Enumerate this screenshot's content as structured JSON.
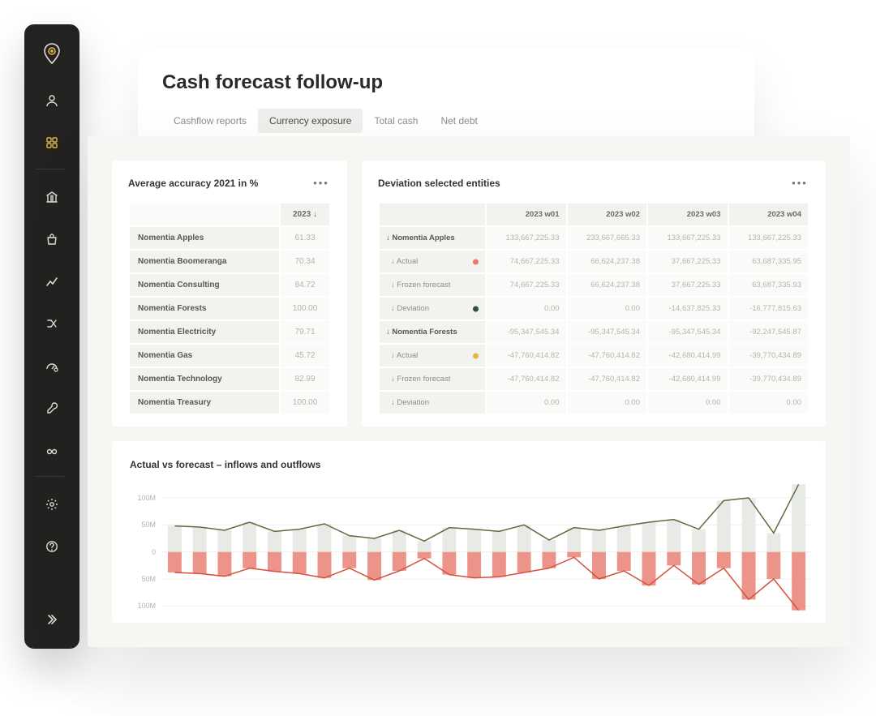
{
  "page": {
    "title": "Cash forecast follow-up",
    "tabs": [
      "Cashflow reports",
      "Currency exposure",
      "Total cash",
      "Net debt"
    ],
    "active_tab": 1
  },
  "sidebar": {
    "icons": [
      "logo",
      "user",
      "grid",
      "divider",
      "bank",
      "bag",
      "chart",
      "merge",
      "gauge",
      "wrench",
      "glasses",
      "divider",
      "gear",
      "help"
    ],
    "active_index": 2
  },
  "accuracy": {
    "title": "Average accuracy 2021 in %",
    "col_header": "2023 ↓",
    "rows": [
      {
        "name": "Nomentia Apples",
        "value": "61.33"
      },
      {
        "name": "Nomentia Boomeranga",
        "value": "70.34"
      },
      {
        "name": "Nomentia Consulting",
        "value": "84.72"
      },
      {
        "name": "Nomentia Forests",
        "value": "100.00"
      },
      {
        "name": "Nomentia Electricity",
        "value": "79.71"
      },
      {
        "name": "Nomentia Gas",
        "value": "45.72"
      },
      {
        "name": "Nomentia Technology",
        "value": "82.99"
      },
      {
        "name": "Nomentia Treasury",
        "value": "100.00"
      }
    ]
  },
  "deviation": {
    "title": "Deviation selected entities",
    "columns": [
      "",
      "2023 w01",
      "2023 w02",
      "2023 w03",
      "2023 w04"
    ],
    "groups": [
      {
        "label": "↓ Nomentia Apples",
        "totals": [
          "133,667,225.33",
          "233,667,665.33",
          "133,667,225.33",
          "133,667,225.33"
        ],
        "rows": [
          {
            "label": "↓ Actual",
            "dot": "#e77a6e",
            "vals": [
              "74,667,225.33",
              "66,624,237.38",
              "37,667,225.33",
              "63,687,335.95"
            ]
          },
          {
            "label": "↓ Frozen forecast",
            "dot": null,
            "vals": [
              "74,667,225.33",
              "66,624,237.38",
              "37,667,225.33",
              "63,687,335.93"
            ]
          },
          {
            "label": "↓ Deviation",
            "dot": "#2e4d3b",
            "vals": [
              "0.00",
              "0.00",
              "-14,637,825.33",
              "-16,777,815.63"
            ]
          }
        ]
      },
      {
        "label": "↓ Nomentia Forests",
        "totals": [
          "-95,347,545.34",
          "-95,347,545.34",
          "-95,347,545.34",
          "-92,247,545.87"
        ],
        "rows": [
          {
            "label": "↓ Actual",
            "dot": "#e2b645",
            "vals": [
              "-47,760,414.82",
              "-47,760,414.82",
              "-42,680,414.99",
              "-39,770,434.89"
            ]
          },
          {
            "label": "↓ Frozen forecast",
            "dot": null,
            "vals": [
              "-47,760,414.82",
              "-47,760,414.82",
              "-42,680,414.99",
              "-39,770,434.89"
            ]
          },
          {
            "label": "↓ Deviation",
            "dot": null,
            "vals": [
              "0.00",
              "0.00",
              "0.00",
              "0.00"
            ]
          }
        ]
      }
    ]
  },
  "chart": {
    "title": "Actual vs forecast – inflows and outflows",
    "ylim": [
      -110,
      130
    ],
    "ylabels": [
      {
        "v": 100,
        "t": "100M"
      },
      {
        "v": 50,
        "t": "50M"
      },
      {
        "v": 0,
        "t": "0"
      },
      {
        "v": -50,
        "t": "50M"
      },
      {
        "v": -100,
        "t": "100M"
      }
    ],
    "bars_pos": [
      48,
      46,
      40,
      55,
      38,
      42,
      52,
      30,
      25,
      40,
      20,
      45,
      42,
      38,
      50,
      22,
      45,
      40,
      48,
      55,
      60,
      42,
      95,
      100,
      35,
      125
    ],
    "bars_neg": [
      -38,
      -40,
      -45,
      -30,
      -36,
      -40,
      -48,
      -30,
      -52,
      -35,
      -12,
      -42,
      -48,
      -46,
      -38,
      -30,
      -10,
      -50,
      -35,
      -62,
      -25,
      -60,
      -30,
      -88,
      -50,
      -108
    ],
    "colors": {
      "bar_pos": "#e8eae5",
      "bar_neg": "#ec9489",
      "line_top": "#5c6b3e",
      "line_bot": "#d84f3f",
      "grid": "#f0efec",
      "bg": "#ffffff"
    }
  }
}
